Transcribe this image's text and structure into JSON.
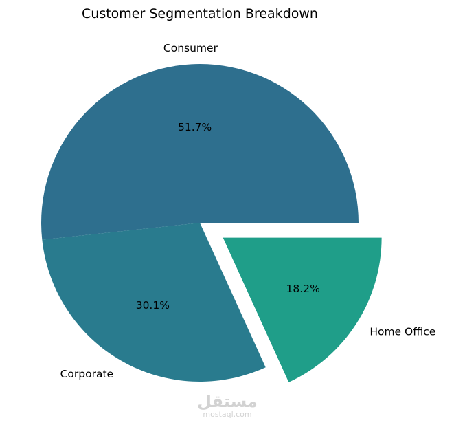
{
  "chart_data": {
    "type": "pie",
    "title": "Customer Segmentation Breakdown",
    "slices": [
      {
        "label": "Consumer",
        "value": 51.7,
        "value_label": "51.7%",
        "color": "#2e6f8e",
        "exploded": false
      },
      {
        "label": "Corporate",
        "value": 30.1,
        "value_label": "30.1%",
        "color": "#297b8e",
        "exploded": false
      },
      {
        "label": "Home Office",
        "value": 18.2,
        "value_label": "18.2%",
        "color": "#1f9e89",
        "exploded": true
      }
    ],
    "start_angle_deg": 0,
    "direction": "counterclockwise"
  },
  "watermark": {
    "arabic": "مستقل",
    "latin": "mostaql.com"
  }
}
